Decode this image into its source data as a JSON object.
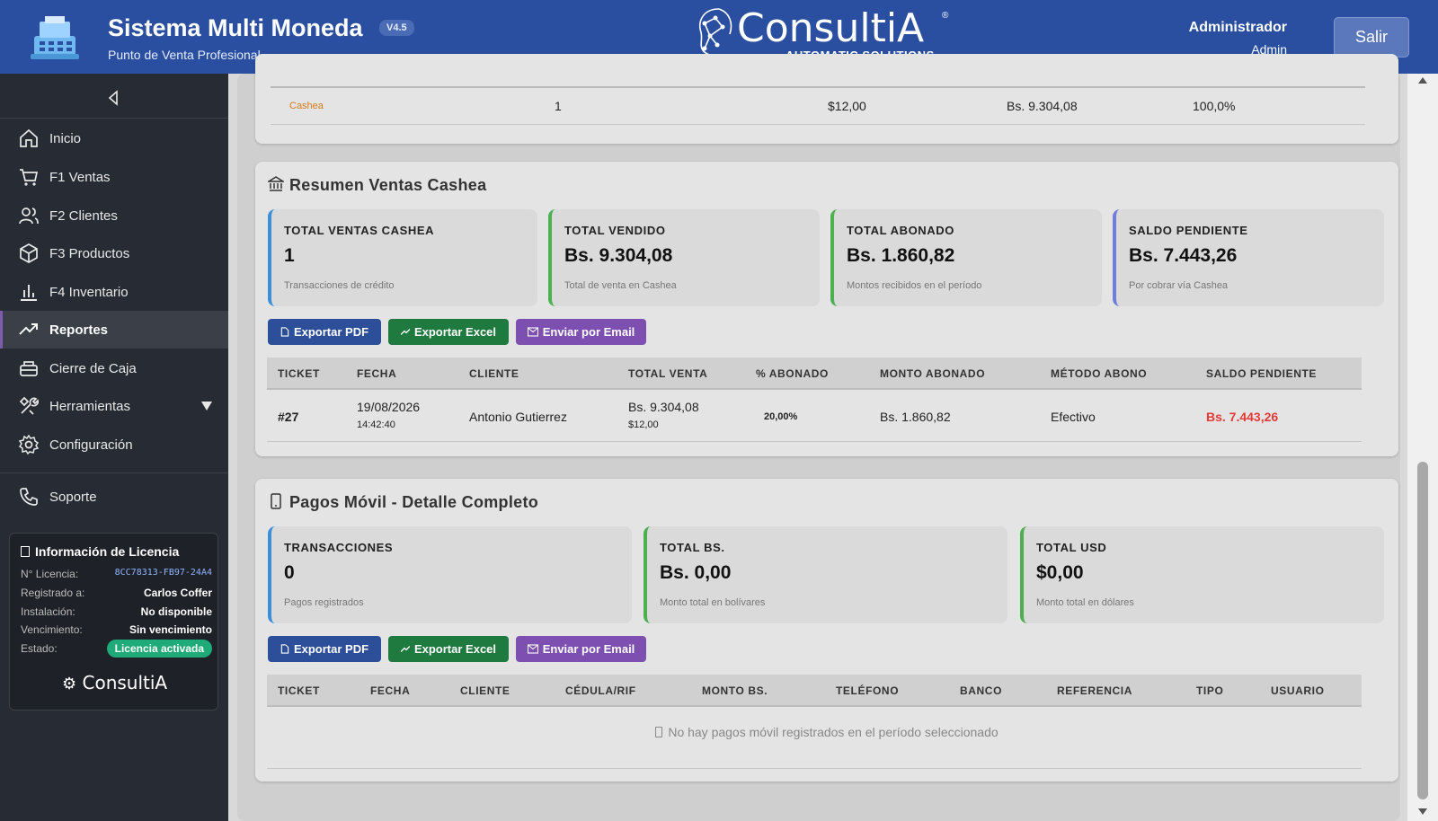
{
  "header": {
    "app_title": "Sistema Multi Moneda",
    "version": "V4.5",
    "subtitle": "Punto de Venta Profesional",
    "brand_name": "ConsultiA",
    "brand_reg": "®",
    "brand_tagline": "AUTOMATIC SOLUTIONS",
    "user_role": "Administrador",
    "user_name": "Admin",
    "logout_label": "Salir",
    "colors": {
      "bar": "#2a4fa0"
    }
  },
  "sidebar": {
    "items": [
      {
        "label": "Inicio",
        "icon": "home-icon"
      },
      {
        "label": "F1 Ventas",
        "icon": "cart-icon"
      },
      {
        "label": "F2 Clientes",
        "icon": "users-icon"
      },
      {
        "label": "F3 Productos",
        "icon": "box-icon"
      },
      {
        "label": "F4 Inventario",
        "icon": "bar-chart-icon"
      },
      {
        "label": "Reportes",
        "icon": "trending-up-icon",
        "active": true
      },
      {
        "label": "Cierre de Caja",
        "icon": "register-icon"
      },
      {
        "label": "Herramientas",
        "icon": "tools-icon"
      },
      {
        "label": "Configuración",
        "icon": "gear-icon"
      },
      {
        "label": "Soporte",
        "icon": "phone-icon"
      }
    ],
    "license": {
      "title": "Información de Licencia",
      "rows": [
        {
          "label": "N° Licencia:",
          "value": "8CC78313-FB97-24A4"
        },
        {
          "label": "Registrado a:",
          "value": "Carlos Coffer"
        },
        {
          "label": "Instalación:",
          "value": "No disponible"
        },
        {
          "label": "Vencimiento:",
          "value": "Sin vencimiento"
        },
        {
          "label": "Estado:",
          "value": "Licencia activada"
        }
      ],
      "logo_text": "ConsultiA"
    }
  },
  "top_table": {
    "row": {
      "method": "Cashea",
      "transactions": "1",
      "total_usd": "$12,00",
      "total_bs": "Bs. 9.304,08",
      "percentage": "100,0%"
    }
  },
  "cashea": {
    "title": "Resumen Ventas Cashea",
    "stats": [
      {
        "label": "TOTAL VENTAS CASHEA",
        "value": "1",
        "sub": "Transacciones de crédito",
        "color": "#3b8fd6"
      },
      {
        "label": "TOTAL VENDIDO",
        "value": "Bs. 9.304,08",
        "sub": "Total de venta en Cashea",
        "color": "#4caf50"
      },
      {
        "label": "TOTAL ABONADO",
        "value": "Bs. 1.860,82",
        "sub": "Montos recibidos en el período",
        "color": "#4caf50"
      },
      {
        "label": "SALDO PENDIENTE",
        "value": "Bs. 7.443,26",
        "sub": "Por cobrar vía Cashea",
        "color": "#6f7fd6"
      }
    ],
    "buttons": {
      "pdf": "Exportar PDF",
      "excel": "Exportar Excel",
      "email": "Enviar por Email"
    },
    "columns": [
      "TICKET",
      "FECHA",
      "CLIENTE",
      "TOTAL VENTA",
      "% ABONADO",
      "MONTO ABONADO",
      "MÉTODO ABONO",
      "SALDO PENDIENTE"
    ],
    "rows": [
      {
        "ticket": "#27",
        "date": "19/08/2026",
        "time": "14:42:40",
        "client": "Antonio Gutierrez",
        "total_bs": "Bs. 9.304,08",
        "total_usd": "$12,00",
        "pct": "20,00%",
        "paid": "Bs. 1.860,82",
        "method": "Efectivo",
        "balance": "Bs. 7.443,26"
      }
    ]
  },
  "pago_movil": {
    "title": "Pagos Móvil - Detalle Completo",
    "stats": [
      {
        "label": "TRANSACCIONES",
        "value": "0",
        "sub": "Pagos registrados",
        "color": "#3b8fd6"
      },
      {
        "label": "TOTAL BS.",
        "value": "Bs. 0,00",
        "sub": "Monto total en bolívares",
        "color": "#4caf50"
      },
      {
        "label": "TOTAL USD",
        "value": "$0,00",
        "sub": "Monto total en dólares",
        "color": "#4caf50"
      }
    ],
    "buttons": {
      "pdf": "Exportar PDF",
      "excel": "Exportar Excel",
      "email": "Enviar por Email"
    },
    "columns": [
      "TICKET",
      "FECHA",
      "CLIENTE",
      "CÉDULA/RIF",
      "MONTO BS.",
      "TELÉFONO",
      "BANCO",
      "REFERENCIA",
      "TIPO",
      "USUARIO"
    ],
    "empty_message": "No hay pagos móvil registrados en el período seleccionado"
  }
}
